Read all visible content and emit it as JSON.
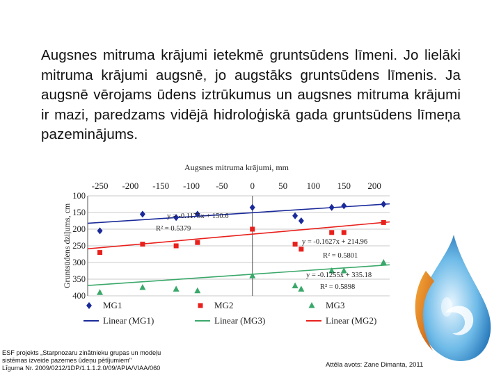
{
  "paragraph": "Augsnes mitruma krājumi ietekmē gruntsūdens līmeni. Jo lielāki mitruma krājumi augsnē, jo augstāks gruntsūdens līmenis. Ja augsnē vērojams ūdens iztrūkumus un augsnes mitruma krājumi ir mazi, paredzams vidējā hidroloģiskā gada gruntsūdens līmeņa pazeminājums.",
  "footer": {
    "project_line1": "ESF projekts „Starpnozaru zinātnieku grupas un modeļu",
    "project_line2": "sistēmas izveide pazemes ūdeņu pētījumiem\"",
    "project_line3": "Līguma Nr. 2009/0212/1DP/1.1.1.2.0/09/APIA/VIAA/060",
    "source": "Attēla avots: Zane Dimanta, 2011"
  },
  "colors": {
    "mg1": "#1a2a9a",
    "mg2": "#e8201c",
    "mg3": "#3aa86a",
    "grid_zero": "#555555"
  },
  "chart_data": {
    "type": "scatter",
    "xlabel": "Augsnes mitruma krājumi, mm",
    "ylabel": "Gruntsūdens dziļums, cm",
    "xlim": [
      -270,
      225
    ],
    "ylim": [
      400,
      100
    ],
    "x_ticks": [
      -250,
      -200,
      -150,
      -100,
      -50,
      0,
      50,
      100,
      150,
      200
    ],
    "y_ticks": [
      100,
      150,
      200,
      250,
      300,
      350,
      400
    ],
    "y_tick_labels": [
      "100",
      "150",
      "200",
      "250",
      "300",
      "350",
      "400"
    ],
    "series": [
      {
        "name": "MG1",
        "marker": "diamond",
        "x": [
          -250,
          -180,
          -125,
          -90,
          0,
          70,
          80,
          130,
          150,
          215
        ],
        "y": [
          205,
          155,
          165,
          155,
          135,
          160,
          175,
          135,
          130,
          125
        ]
      },
      {
        "name": "MG2",
        "marker": "square",
        "x": [
          -250,
          -180,
          -125,
          -90,
          0,
          70,
          80,
          130,
          150,
          215
        ],
        "y": [
          270,
          245,
          250,
          240,
          200,
          245,
          260,
          210,
          210,
          180
        ]
      },
      {
        "name": "MG3",
        "marker": "triangle",
        "x": [
          -250,
          -180,
          -125,
          -90,
          0,
          70,
          80,
          130,
          150,
          215
        ],
        "y": [
          390,
          375,
          380,
          385,
          340,
          370,
          380,
          325,
          325,
          300
        ]
      }
    ],
    "trendlines": [
      {
        "name": "Linear (MG1)",
        "series": "MG1",
        "slope": -0.1175,
        "intercept": 150.6,
        "equation": "y = -0.1175x + 150.6",
        "r2": "R² = 0.5379"
      },
      {
        "name": "Linear (MG3)",
        "series": "MG3",
        "slope": -0.1255,
        "intercept": 335.18,
        "equation": "y = -0.1255x + 335.18",
        "r2": "R² = 0.5898"
      },
      {
        "name": "Linear (MG2)",
        "series": "MG2",
        "slope": -0.1627,
        "intercept": 214.96,
        "equation": "y = -0.1627x + 214.96",
        "r2": "R² = 0.5801"
      }
    ],
    "legend": [
      "MG1",
      "MG2",
      "MG3",
      "Linear (MG1)",
      "Linear (MG3)",
      "Linear (MG2)"
    ],
    "grid": true,
    "legend_position": "bottom"
  }
}
